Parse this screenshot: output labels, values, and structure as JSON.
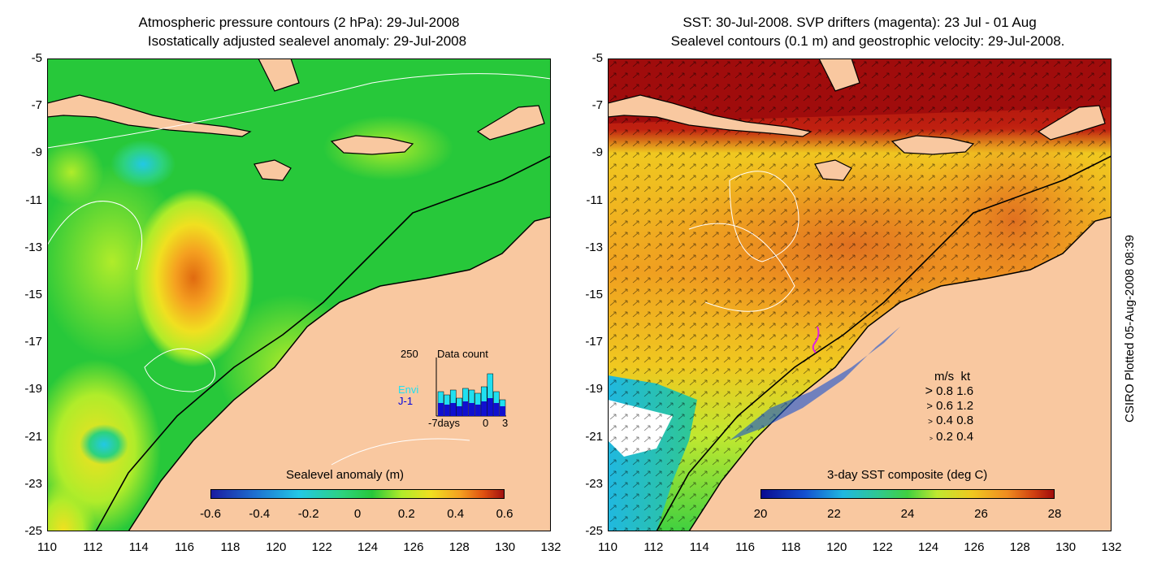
{
  "left_panel": {
    "title_line1": "Atmospheric pressure contours (2 hPa): 29-Jul-2008",
    "title_line2": "Isostatically adjusted sealevel anomaly: 29-Jul-2008",
    "colorbar": {
      "label": "Sealevel anomaly (m)",
      "ticks": [
        "-0.6",
        "-0.4",
        "-0.2",
        "0",
        "0.2",
        "0.4",
        "0.6"
      ]
    },
    "inset": {
      "max_label": "250",
      "title": "Data count",
      "series": [
        "Envi",
        "J-1"
      ],
      "x_label": "-7days",
      "x_ticks": [
        "0",
        "3"
      ]
    }
  },
  "right_panel": {
    "title_line1": "SST: 30-Jul-2008. SVP drifters (magenta): 23 Jul - 01 Aug",
    "title_line2": "Sealevel contours (0.1 m) and geostrophic velocity: 29-Jul-2008.",
    "colorbar": {
      "label": "3-day SST composite (deg C)",
      "ticks": [
        "20",
        "22",
        "24",
        "26",
        "28"
      ]
    },
    "velocity_key": {
      "header_ms": "m/s",
      "header_kt": "kt",
      "rows": [
        {
          "ms": "0.8",
          "kt": "1.6"
        },
        {
          "ms": "0.6",
          "kt": "1.2"
        },
        {
          "ms": "0.4",
          "kt": "0.8"
        },
        {
          "ms": "0.2",
          "kt": "0.4"
        }
      ]
    }
  },
  "axes": {
    "lat_ticks": [
      "-5",
      "-7",
      "-9",
      "-11",
      "-13",
      "-15",
      "-17",
      "-19",
      "-21",
      "-23",
      "-25"
    ],
    "lon_ticks": [
      "110",
      "112",
      "114",
      "116",
      "118",
      "120",
      "122",
      "124",
      "126",
      "128",
      "130",
      "132"
    ]
  },
  "credit": "CSIRO Plotted 05-Aug-2008 08:39",
  "colors": {
    "land": "#f9c8a0",
    "sla_ramp": [
      "#1a1aa0",
      "#1e6fd0",
      "#22c8e6",
      "#2dd27d",
      "#27c83a",
      "#b0ec2a",
      "#f0e020",
      "#f5a020",
      "#e05010",
      "#a01010"
    ],
    "sst_ramp": [
      "#0a0a90",
      "#1450d0",
      "#20b8e0",
      "#30c890",
      "#40d040",
      "#c0e830",
      "#f0c820",
      "#f08c20",
      "#d04010",
      "#a00c0c"
    ],
    "drifter": "#e020e0"
  }
}
